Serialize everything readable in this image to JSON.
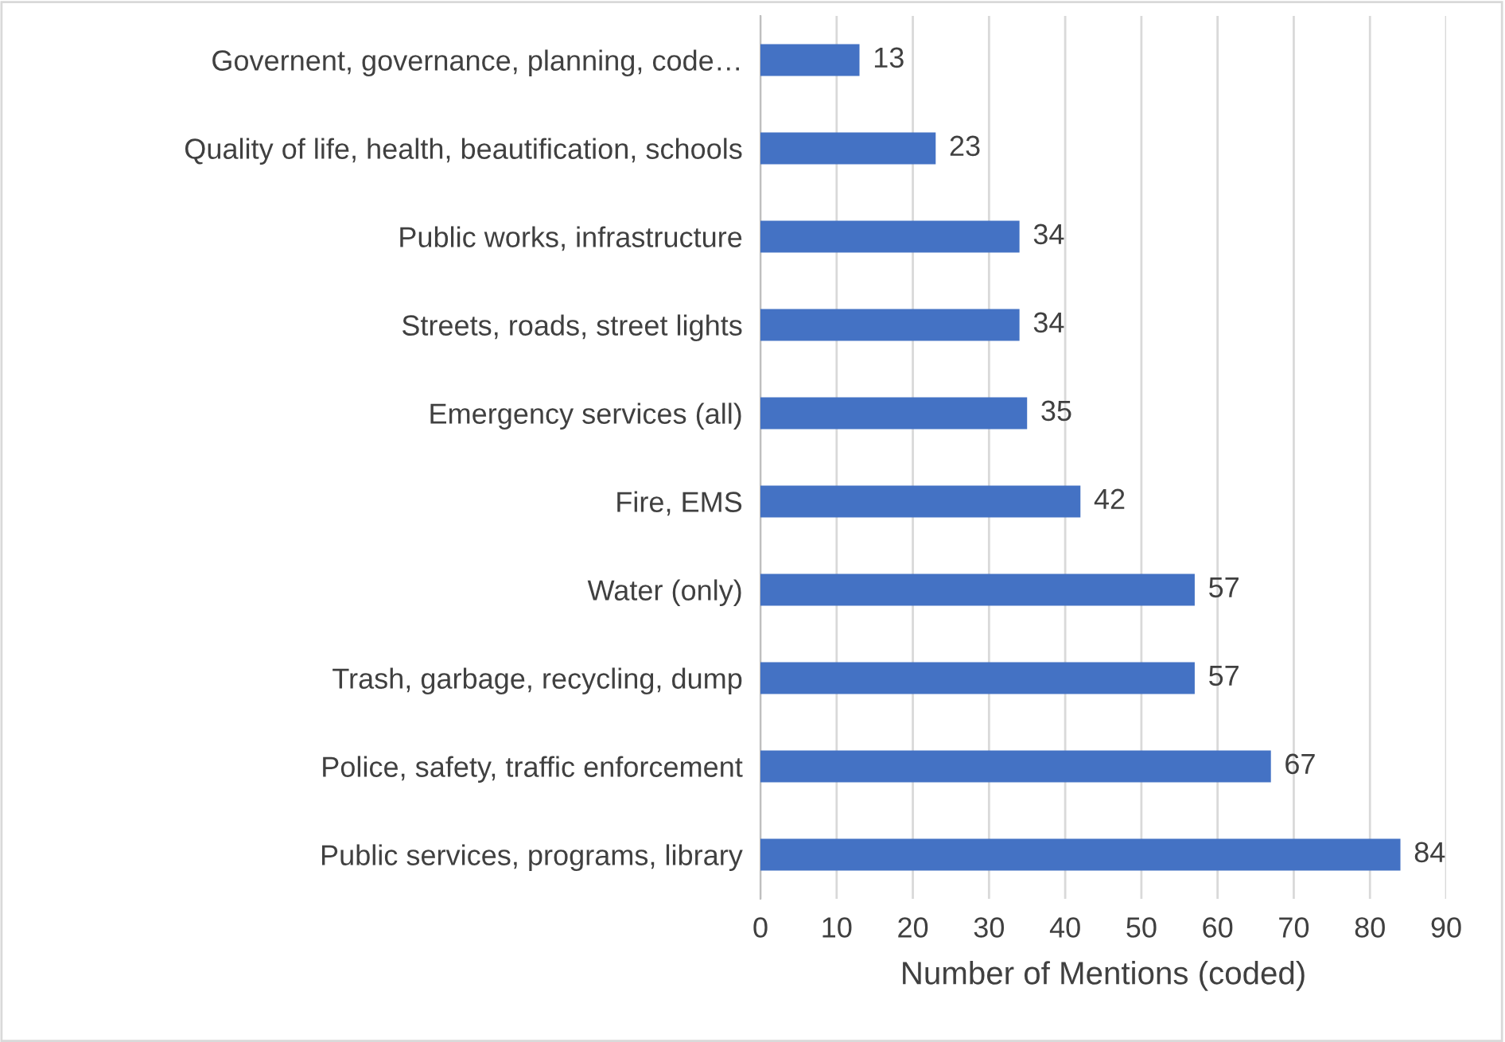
{
  "chart_data": {
    "type": "bar",
    "orientation": "horizontal",
    "xlabel": "Number of Mentions (coded)",
    "categories": [
      "Governent, governance, planning, code…",
      "Quality of life, health, beautification, schools",
      "Public works, infrastructure",
      "Streets, roads, street lights",
      "Emergency services (all)",
      "Fire, EMS",
      "Water (only)",
      "Trash, garbage, recycling, dump",
      "Police, safety, traffic enforcement",
      "Public services, programs, library"
    ],
    "values": [
      13,
      23,
      34,
      34,
      35,
      42,
      57,
      57,
      67,
      84
    ],
    "color": "#4472c4",
    "xlim": [
      0,
      90
    ],
    "xticks": [
      0,
      10,
      20,
      30,
      40,
      50,
      60,
      70,
      80,
      90
    ],
    "grid": "x",
    "data_labels": true
  }
}
